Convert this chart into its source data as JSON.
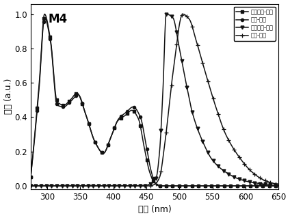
{
  "title": "M4",
  "xlabel": "波长 (nm)",
  "ylabel": "强度 (a.u.)",
  "xlim": [
    275,
    650
  ],
  "ylim": [
    -0.02,
    1.06
  ],
  "xticks": [
    300,
    350,
    400,
    450,
    500,
    550,
    600,
    650
  ],
  "yticks": [
    0.0,
    0.2,
    0.4,
    0.6,
    0.8,
    1.0
  ],
  "legend_labels": [
    "二氯甲烷-吸收",
    "甲苯-吸收",
    "二氯甲烷-发射",
    "甲苯-发射"
  ],
  "line_color": "#111111",
  "markers": [
    "s",
    "o",
    "v",
    "+"
  ],
  "background_color": "#ffffff"
}
